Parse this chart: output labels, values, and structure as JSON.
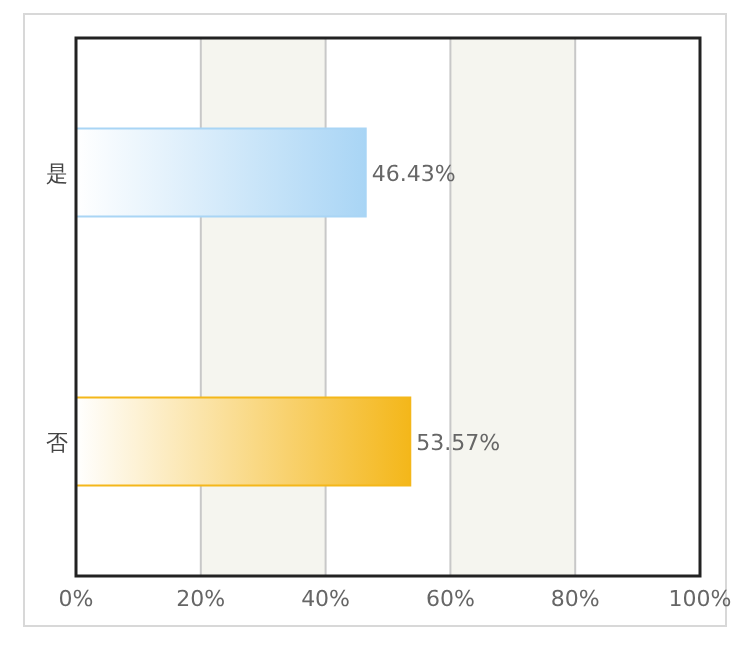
{
  "chart_data": {
    "type": "bar",
    "orientation": "horizontal",
    "categories": [
      "是",
      "否"
    ],
    "values": [
      46.43,
      53.57
    ],
    "colors": [
      "#a9d5f5",
      "#f4b71a"
    ],
    "value_labels": [
      "46.43%",
      "53.57%"
    ],
    "xlim": [
      0,
      100
    ],
    "xticks": [
      {
        "value": 0,
        "label": "0%"
      },
      {
        "value": 20,
        "label": "20%"
      },
      {
        "value": 40,
        "label": "40%"
      },
      {
        "value": 60,
        "label": "60%"
      },
      {
        "value": 80,
        "label": "80%"
      },
      {
        "value": 100,
        "label": "100%"
      }
    ],
    "grid": "x",
    "bands": [
      {
        "axis": "x",
        "from": 20,
        "to": 40,
        "color": "#f5f5ef"
      },
      {
        "axis": "x",
        "from": 60,
        "to": 80,
        "color": "#f5f5ef"
      }
    ]
  }
}
